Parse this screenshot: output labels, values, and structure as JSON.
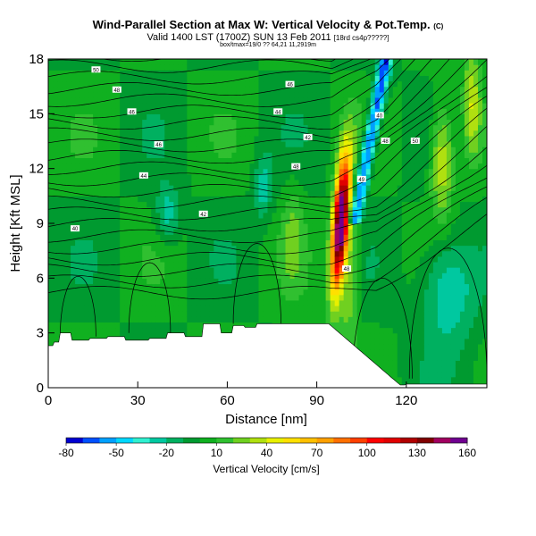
{
  "header": {
    "title": "Wind-Parallel Section at Max W: Vertical Velocity & Pot.Temp.",
    "copyright_mark": "(C)",
    "subtitle": "Valid 1400 LST (1700Z) SUN 13 Feb 2011",
    "subtitle_note": "[18rd cs4p?????]",
    "info_line": "box/tmax=19/0 ?? 64,21 11,2919m"
  },
  "chart_data": {
    "type": "heatmap",
    "title": "Wind-Parallel Section at Max W: Vertical Velocity & Pot.Temp.",
    "xlabel": "Distance [nm]",
    "ylabel": "Height [Kft MSL]",
    "xlim": [
      0,
      147
    ],
    "ylim": [
      0,
      18
    ],
    "x_ticks": [
      "0",
      "30",
      "60",
      "90",
      "120"
    ],
    "x_tick_values": [
      0,
      30,
      60,
      90,
      120
    ],
    "y_ticks": [
      "0",
      "3",
      "6",
      "9",
      "12",
      "15",
      "18"
    ],
    "y_tick_values": [
      0,
      3,
      6,
      9,
      12,
      15,
      18
    ],
    "grid": false,
    "colorbar": {
      "label": "Vertical Velocity [cm/s]",
      "labels": [
        "-80",
        "-50",
        "-20",
        "10",
        "40",
        "70",
        "100",
        "130",
        "160"
      ],
      "values": [
        -80,
        -50,
        -20,
        10,
        40,
        70,
        100,
        130,
        160
      ],
      "colors": [
        "#0000d0",
        "#0050ff",
        "#00a0ff",
        "#00d8ff",
        "#30f0d0",
        "#00c8a0",
        "#00b060",
        "#009a30",
        "#10b020",
        "#30c030",
        "#70d020",
        "#b0e010",
        "#e8f000",
        "#ffe000",
        "#ffc000",
        "#ffa000",
        "#ff7000",
        "#ff4000",
        "#ff0000",
        "#e00000",
        "#b00000",
        "#800000",
        "#a00060",
        "#700090"
      ]
    },
    "max_updraft": {
      "distance_nm": 98,
      "height_kft": 9,
      "value_cm_s": 160
    },
    "isentrope_labels": [
      "50",
      "48",
      "46",
      "46",
      "44",
      "42",
      "40",
      "46",
      "44",
      "42",
      "48",
      "40",
      "48",
      "50",
      "49",
      "48"
    ]
  }
}
